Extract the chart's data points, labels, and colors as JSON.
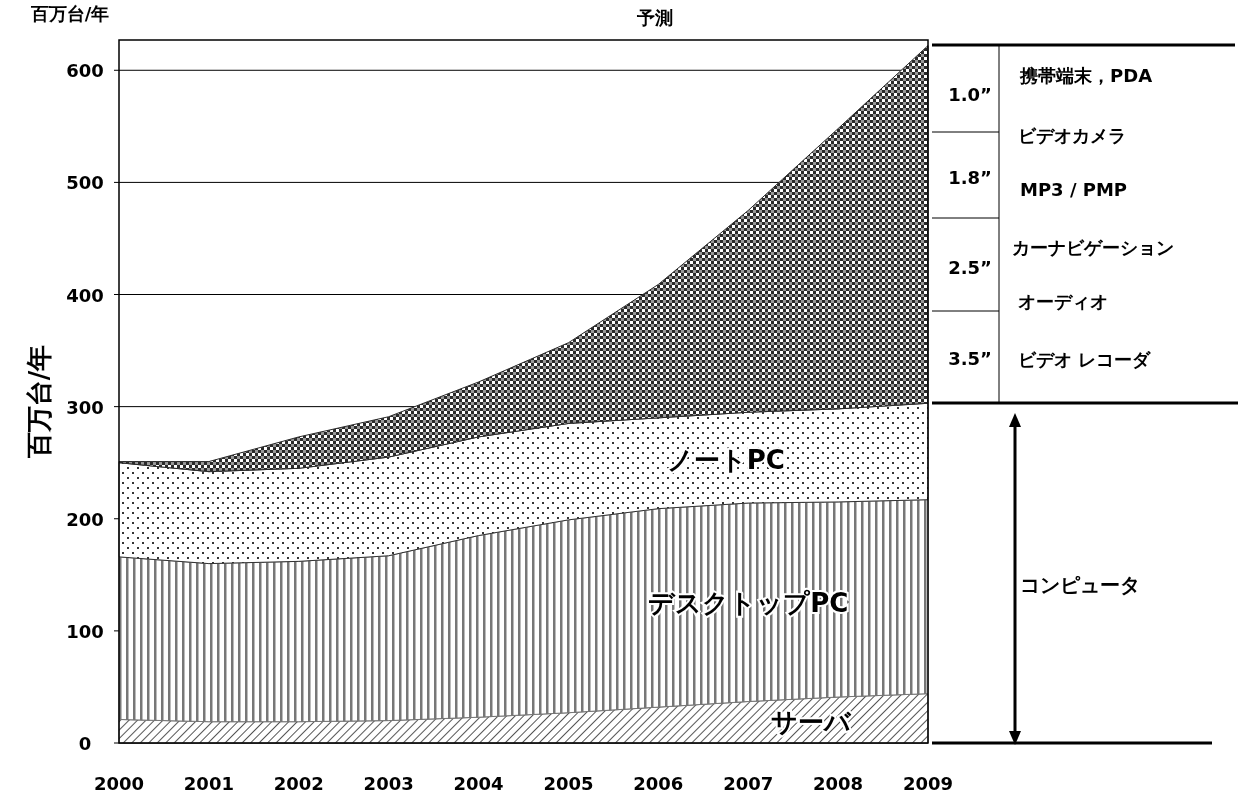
{
  "chart_data": {
    "type": "area",
    "stacked": true,
    "categories": [
      "2000",
      "2001",
      "2002",
      "2003",
      "2004",
      "2005",
      "2006",
      "2007",
      "2008",
      "2009"
    ],
    "series": [
      {
        "name": "サーバ",
        "color": "#555555",
        "values": [
          21,
          19,
          19,
          20,
          23,
          27,
          32,
          37,
          41,
          44
        ]
      },
      {
        "name": "デスクトップPC",
        "color": "#777777",
        "values": [
          145,
          141,
          143,
          147,
          162,
          172,
          177,
          177,
          174,
          173
        ]
      },
      {
        "name": "ノートPC",
        "color": "#333333",
        "values": [
          84,
          82,
          83,
          88,
          88,
          86,
          81,
          81,
          83,
          86
        ]
      },
      {
        "color": "#2a2a2a",
        "values": [
          1,
          9,
          28,
          36,
          49,
          72,
          119,
          180,
          250,
          319
        ]
      }
    ],
    "ylim": [
      0,
      627
    ],
    "yticks": [
      0,
      100,
      200,
      300,
      400,
      500,
      600
    ],
    "grid": "y",
    "ylabel": "百万台/年",
    "annotations": [
      "百万台/年",
      "予測",
      "1.0”",
      "1.8”",
      "2.5”",
      "3.5”",
      "携帯端末，PDA",
      "ビデオカメラ",
      "MP3 / PMP",
      "カーナビゲーション",
      "オーディオ",
      "ビデオ レコーダ",
      "コンピュータ"
    ]
  }
}
